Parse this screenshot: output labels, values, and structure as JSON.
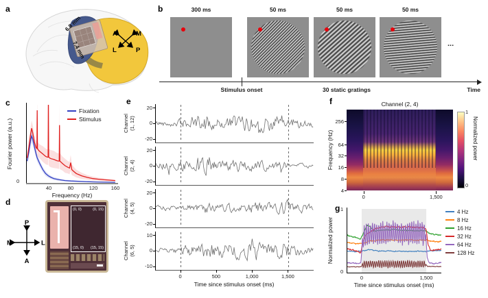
{
  "figure": {
    "a": {
      "label": "a",
      "width_label": "6.8 mm",
      "height_label": "7.4 mm",
      "compass": {
        "tl": "A",
        "tr": "M",
        "bl": "L",
        "br": "P"
      }
    },
    "b": {
      "label": "b",
      "frames": [
        {
          "duration": "300 ms",
          "type": "blank"
        },
        {
          "duration": "50 ms",
          "type": "grating",
          "angle": 135,
          "pitch": 3.2
        },
        {
          "duration": "50 ms",
          "type": "grating",
          "angle": 138,
          "pitch": 4.6
        },
        {
          "duration": "50 ms",
          "type": "grating",
          "angle": 175,
          "pitch": 3.6
        }
      ],
      "ellipsis": "...",
      "timeline": {
        "onset": "Stimulus onset",
        "middle": "30 static gratings",
        "end": "Time"
      }
    },
    "c": {
      "label": "c",
      "yticks": [
        "0"
      ]
    },
    "d": {
      "label": "d",
      "compass": {
        "up": "P",
        "down": "A",
        "left": "M",
        "right": "L"
      },
      "array_corners": [
        "(0, 0)",
        "(0, 15)",
        "(15, 0)",
        "(15, 15)"
      ]
    },
    "e": {
      "label": "e",
      "channels": [
        {
          "line1": "Channel",
          "line2": "(1, 12)",
          "yticks": [
            "20",
            "0",
            "-20"
          ]
        },
        {
          "line1": "Channel",
          "line2": "(2, 4)",
          "yticks": [
            "20",
            "0",
            "-20"
          ]
        },
        {
          "line1": "Channel",
          "line2": "(4, 5)",
          "yticks": [
            "20",
            "0",
            "-20"
          ]
        },
        {
          "line1": "Channel",
          "line2": "(6, 5)",
          "yticks": [
            "10",
            "0",
            "-10"
          ]
        }
      ],
      "xticks": [
        "0",
        "500",
        "1,000",
        "1,500"
      ],
      "xlabel": "Time since stimulus onset (ms)"
    },
    "f": {
      "label": "f",
      "title": "Channel (2, 4)",
      "ylabel": "Frequency (Hz)",
      "yticks": [
        "256",
        "64",
        "32",
        "16",
        "8",
        "4"
      ],
      "xticks": [
        "0",
        "1,500"
      ],
      "colorbar": {
        "max": "1",
        "min": "0",
        "label": "Normalized power"
      }
    },
    "g": {
      "label": "g",
      "ylabel": "Normalized power",
      "yticks": [
        "1",
        "0"
      ],
      "xticks": [
        "0",
        "1,500"
      ],
      "xlabel": "Time since stimulus onset (ms)"
    }
  },
  "chart_data": [
    {
      "panel": "c",
      "type": "line",
      "xlabel": "Frequency (Hz)",
      "ylabel": "Fourier power (a.u.)",
      "xlim": [
        0,
        165
      ],
      "xticks": [
        40,
        80,
        120,
        160
      ],
      "legend_position": "top-right",
      "series": [
        {
          "name": "Fixation",
          "color": "#3240c2",
          "band_color": "rgba(80,95,210,0.18)",
          "points": [
            [
              2,
              0.28,
              0.05
            ],
            [
              5,
              0.4,
              0.06
            ],
            [
              8,
              0.54,
              0.07
            ],
            [
              10,
              0.6,
              0.08
            ],
            [
              12,
              0.56,
              0.07
            ],
            [
              15,
              0.46,
              0.06
            ],
            [
              18,
              0.37,
              0.05
            ],
            [
              20,
              0.32,
              0.05
            ],
            [
              25,
              0.24,
              0.04
            ],
            [
              30,
              0.17,
              0.035
            ],
            [
              35,
              0.12,
              0.03
            ],
            [
              40,
              0.09,
              0.025
            ],
            [
              45,
              0.07,
              0.02
            ],
            [
              50,
              0.055,
              0.02
            ],
            [
              60,
              0.04,
              0.015
            ],
            [
              70,
              0.03,
              0.012
            ],
            [
              80,
              0.025,
              0.01
            ],
            [
              100,
              0.018,
              0.008
            ],
            [
              120,
              0.013,
              0.006
            ],
            [
              140,
              0.01,
              0.005
            ],
            [
              160,
              0.008,
              0.005
            ]
          ]
        },
        {
          "name": "Stimulus",
          "color": "#e0201f",
          "band_color": "rgba(228,40,40,0.15)",
          "points": [
            [
              2,
              0.32,
              0.06
            ],
            [
              5,
              0.46,
              0.08
            ],
            [
              8,
              0.62,
              0.09
            ],
            [
              10,
              0.7,
              0.1
            ],
            [
              12,
              0.64,
              0.1
            ],
            [
              15,
              0.52,
              0.09
            ],
            [
              18,
              0.45,
              0.09
            ],
            [
              19.5,
              0.44,
              0.09
            ],
            [
              20,
              0.93,
              0.35
            ],
            [
              20.5,
              0.44,
              0.09
            ],
            [
              22,
              0.42,
              0.09
            ],
            [
              25,
              0.4,
              0.09
            ],
            [
              30,
              0.37,
              0.1
            ],
            [
              35,
              0.34,
              0.1
            ],
            [
              38,
              0.33,
              0.1
            ],
            [
              39.5,
              0.33,
              0.1
            ],
            [
              40,
              1.1,
              0.45
            ],
            [
              40.5,
              0.33,
              0.1
            ],
            [
              42,
              0.32,
              0.11
            ],
            [
              45,
              0.31,
              0.11
            ],
            [
              50,
              0.3,
              0.11
            ],
            [
              55,
              0.285,
              0.1
            ],
            [
              58,
              0.28,
              0.1
            ],
            [
              59.5,
              0.28,
              0.1
            ],
            [
              60,
              0.74,
              0.3
            ],
            [
              60.5,
              0.28,
              0.1
            ],
            [
              62,
              0.27,
              0.1
            ],
            [
              65,
              0.25,
              0.09
            ],
            [
              70,
              0.22,
              0.09
            ],
            [
              75,
              0.2,
              0.08
            ],
            [
              78,
              0.19,
              0.08
            ],
            [
              80,
              0.26,
              0.1
            ],
            [
              82,
              0.17,
              0.07
            ],
            [
              85,
              0.15,
              0.06
            ],
            [
              90,
              0.12,
              0.05
            ],
            [
              100,
              0.09,
              0.04
            ],
            [
              110,
              0.07,
              0.03
            ],
            [
              120,
              0.055,
              0.025
            ],
            [
              130,
              0.047,
              0.02
            ],
            [
              140,
              0.04,
              0.018
            ],
            [
              150,
              0.035,
              0.015
            ],
            [
              160,
              0.03,
              0.012
            ]
          ]
        }
      ]
    },
    {
      "panel": "f",
      "type": "heatmap",
      "title": "Channel (2, 4)",
      "ylabel": "Frequency (Hz)",
      "yscale": "log2",
      "yticks": [
        256,
        64,
        32,
        16,
        8,
        4
      ],
      "xlim_ms": [
        -350,
        1850
      ],
      "xticks_ms": [
        0,
        1500
      ],
      "stim_window_ms": [
        0,
        1500
      ],
      "colormap": "magma",
      "colorbar": {
        "label": "Normalized power",
        "range": [
          0,
          1
        ]
      },
      "features": [
        "persistent 8-16 Hz power band at all times",
        "strong 32-64 Hz band during 0-1,500 ms stimulus",
        "vertical flicker-locked stripes during stimulus"
      ]
    },
    {
      "panel": "e",
      "type": "line",
      "xlabel": "Time since stimulus onset (ms)",
      "xlim_ms": [
        -350,
        1850
      ],
      "xticks_ms": [
        0,
        500,
        1000,
        1500
      ],
      "dashed_lines_ms": [
        0,
        1500
      ],
      "channels": [
        {
          "label": "Channel (1, 12)",
          "ylim": [
            -20,
            20
          ]
        },
        {
          "label": "Channel (2, 4)",
          "ylim": [
            -20,
            20
          ]
        },
        {
          "label": "Channel (4, 5)",
          "ylim": [
            -20,
            20
          ]
        },
        {
          "label": "Channel (6, 5)",
          "ylim": [
            -10,
            10
          ]
        }
      ]
    },
    {
      "panel": "g",
      "type": "line",
      "xlabel": "Time since stimulus onset (ms)",
      "ylabel": "Normalized power",
      "ylim": [
        0,
        1
      ],
      "yticks": [
        1,
        0
      ],
      "xlim_ms": [
        -350,
        1850
      ],
      "xticks_ms": [
        0,
        1500
      ],
      "stim_window_ms": [
        0,
        1500
      ],
      "series": [
        {
          "name": "4 Hz",
          "color": "#3f7fbf",
          "noise": 0.007,
          "keypoints": [
            [
              -350,
              0.335
            ],
            [
              -250,
              0.34
            ],
            [
              -150,
              0.33
            ],
            [
              -50,
              0.335
            ],
            [
              50,
              0.345
            ],
            [
              150,
              0.36
            ],
            [
              300,
              0.345
            ],
            [
              500,
              0.335
            ],
            [
              700,
              0.34
            ],
            [
              900,
              0.335
            ],
            [
              1100,
              0.33
            ],
            [
              1300,
              0.335
            ],
            [
              1500,
              0.33
            ],
            [
              1650,
              0.345
            ],
            [
              1850,
              0.35
            ]
          ]
        },
        {
          "name": "8 Hz",
          "color": "#ff7f0e",
          "noise": 0.009,
          "keypoints": [
            [
              -350,
              0.475
            ],
            [
              -250,
              0.47
            ],
            [
              -150,
              0.455
            ],
            [
              -50,
              0.45
            ],
            [
              50,
              0.47
            ],
            [
              150,
              0.49
            ],
            [
              300,
              0.505
            ],
            [
              500,
              0.51
            ],
            [
              700,
              0.515
            ],
            [
              900,
              0.51
            ],
            [
              1100,
              0.515
            ],
            [
              1300,
              0.51
            ],
            [
              1500,
              0.515
            ],
            [
              1600,
              0.5
            ],
            [
              1750,
              0.485
            ],
            [
              1850,
              0.49
            ]
          ]
        },
        {
          "name": "16 Hz",
          "color": "#2ca02c",
          "noise": 0.009,
          "keypoints": [
            [
              -350,
              0.585
            ],
            [
              -250,
              0.575
            ],
            [
              -150,
              0.555
            ],
            [
              -80,
              0.53
            ],
            [
              -30,
              0.525
            ],
            [
              30,
              0.6
            ],
            [
              120,
              0.745
            ],
            [
              200,
              0.73
            ],
            [
              280,
              0.66
            ],
            [
              400,
              0.655
            ],
            [
              600,
              0.67
            ],
            [
              800,
              0.675
            ],
            [
              1000,
              0.66
            ],
            [
              1200,
              0.665
            ],
            [
              1400,
              0.66
            ],
            [
              1500,
              0.655
            ],
            [
              1580,
              0.615
            ],
            [
              1700,
              0.595
            ],
            [
              1850,
              0.59
            ]
          ]
        },
        {
          "name": "32 Hz",
          "color": "#d62728",
          "noise": 0.011,
          "keypoints": [
            [
              -350,
              0.38
            ],
            [
              -250,
              0.36
            ],
            [
              -150,
              0.35
            ],
            [
              -80,
              0.33
            ],
            [
              -20,
              0.315
            ],
            [
              30,
              0.5
            ],
            [
              100,
              0.6
            ],
            [
              200,
              0.65
            ],
            [
              350,
              0.7
            ],
            [
              500,
              0.715
            ],
            [
              700,
              0.72
            ],
            [
              900,
              0.715
            ],
            [
              1100,
              0.72
            ],
            [
              1300,
              0.71
            ],
            [
              1450,
              0.7
            ],
            [
              1500,
              0.68
            ],
            [
              1540,
              0.45
            ],
            [
              1600,
              0.36
            ],
            [
              1700,
              0.35
            ],
            [
              1850,
              0.37
            ]
          ]
        },
        {
          "name": "64 Hz",
          "color": "#9467bd",
          "noise": 0.01,
          "osc": {
            "amp": 0.16,
            "period_ms": 48
          },
          "keypoints": [
            [
              -350,
              0.155
            ],
            [
              -200,
              0.15
            ],
            [
              -100,
              0.145
            ],
            [
              -20,
              0.15
            ],
            [
              20,
              0.5
            ],
            [
              80,
              0.58
            ],
            [
              200,
              0.6
            ],
            [
              400,
              0.615
            ],
            [
              600,
              0.62
            ],
            [
              800,
              0.625
            ],
            [
              1000,
              0.62
            ],
            [
              1200,
              0.625
            ],
            [
              1400,
              0.62
            ],
            [
              1490,
              0.6
            ],
            [
              1520,
              0.25
            ],
            [
              1560,
              0.16
            ],
            [
              1700,
              0.14
            ],
            [
              1850,
              0.165
            ]
          ]
        },
        {
          "name": "128 Hz",
          "color": "#7f3c3c",
          "noise": 0.005,
          "osc": {
            "amp": 0.05,
            "period_ms": 48
          },
          "keypoints": [
            [
              -350,
              0.095
            ],
            [
              -150,
              0.09
            ],
            [
              -20,
              0.09
            ],
            [
              30,
              0.13
            ],
            [
              300,
              0.135
            ],
            [
              800,
              0.135
            ],
            [
              1300,
              0.135
            ],
            [
              1490,
              0.13
            ],
            [
              1530,
              0.1
            ],
            [
              1700,
              0.095
            ],
            [
              1850,
              0.1
            ]
          ]
        }
      ]
    }
  ]
}
